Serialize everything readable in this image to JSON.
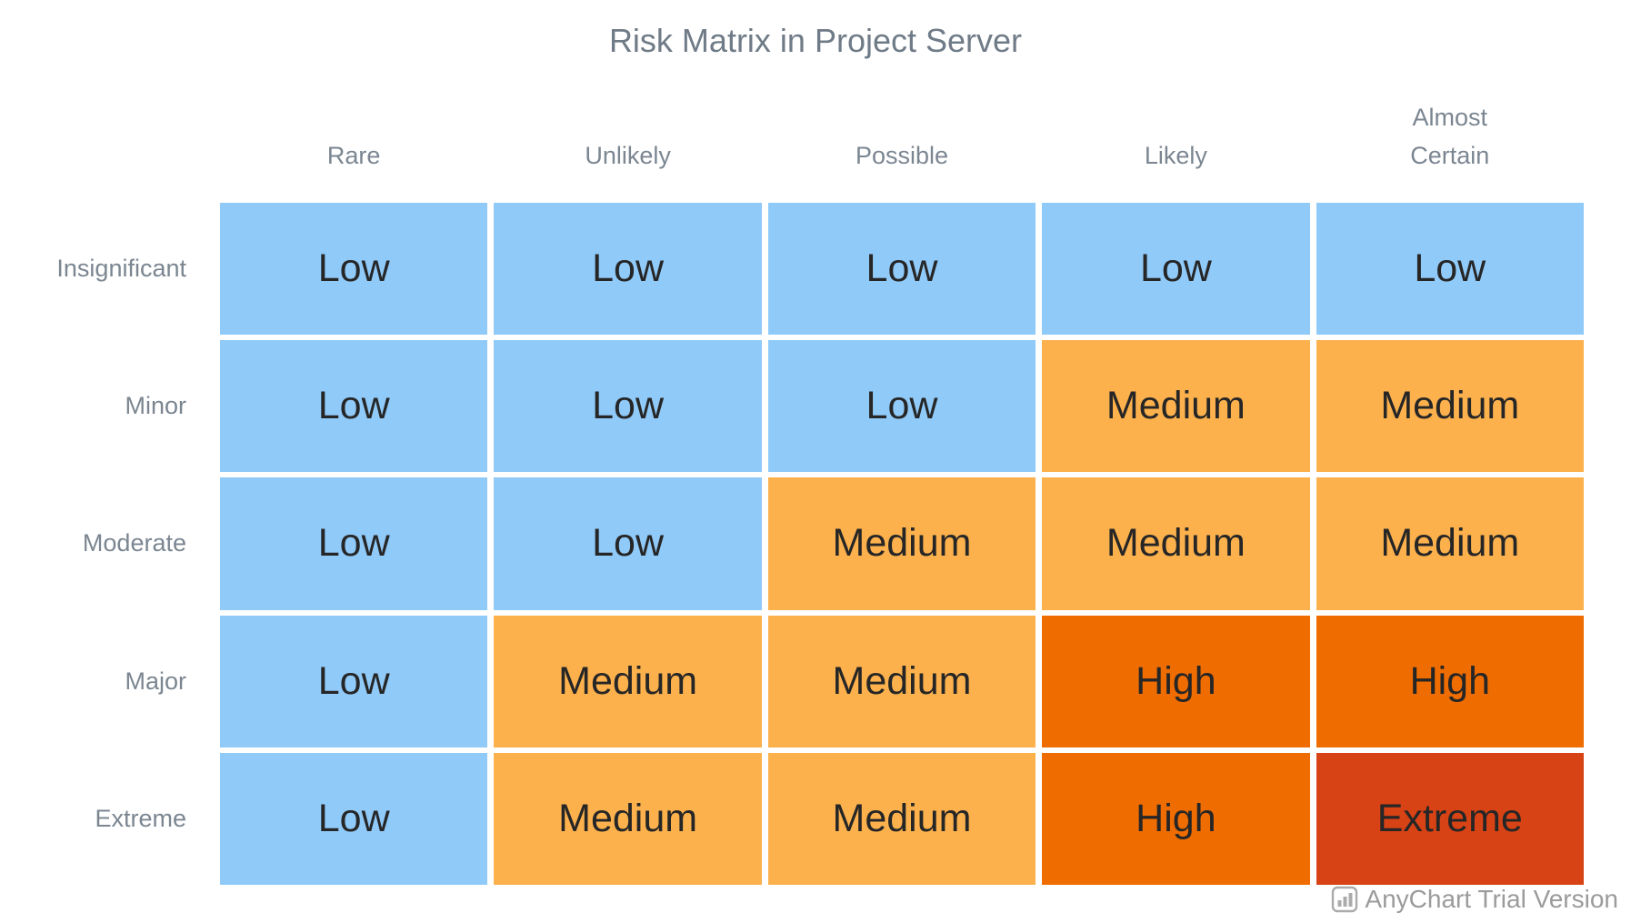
{
  "title": "Risk Matrix in Project Server",
  "chart_data": {
    "type": "heatmap",
    "x_axis_categories": [
      "Rare",
      "Unlikely",
      "Possible",
      "Likely",
      "Almost Certain"
    ],
    "y_axis_categories": [
      "Insignificant",
      "Minor",
      "Moderate",
      "Major",
      "Extreme"
    ],
    "cells": [
      [
        "Low",
        "Low",
        "Low",
        "Low",
        "Low"
      ],
      [
        "Low",
        "Low",
        "Low",
        "Medium",
        "Medium"
      ],
      [
        "Low",
        "Low",
        "Medium",
        "Medium",
        "Medium"
      ],
      [
        "Low",
        "Medium",
        "Medium",
        "High",
        "High"
      ],
      [
        "Low",
        "Medium",
        "Medium",
        "High",
        "Extreme"
      ]
    ],
    "levels": {
      "Low": "#90CAF9",
      "Medium": "#FCB14D",
      "High": "#EF6C00",
      "Extreme": "#D84315"
    },
    "title": "Risk Matrix in Project Server",
    "legend": "none",
    "grid": "off"
  },
  "palette": {
    "title_color": "#6f7b87",
    "axis_label_color": "#7b8691",
    "cell_text_color": "#262626",
    "watermark_color": "#9b9b9b",
    "background": "#ffffff"
  },
  "watermark": {
    "label": "AnyChart Trial Version",
    "icon": "bar-chart-icon"
  }
}
